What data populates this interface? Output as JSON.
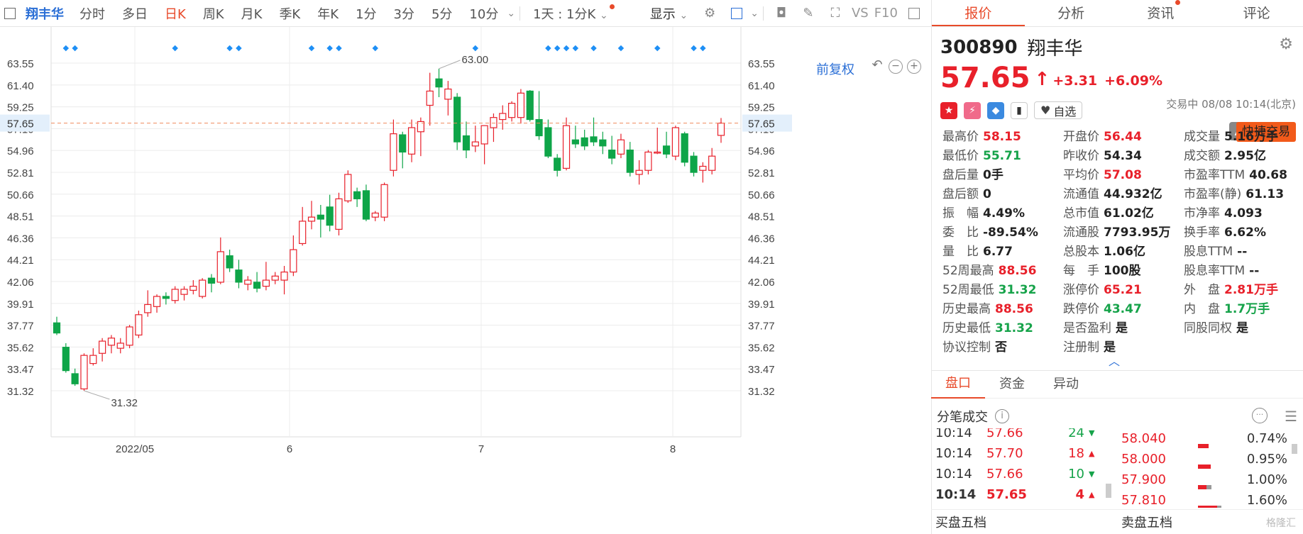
{
  "toolbar": {
    "stock_name": "翔丰华",
    "periods": [
      "分时",
      "多日",
      "日K",
      "周K",
      "月K",
      "季K",
      "年K",
      "1分",
      "3分",
      "5分",
      "10分"
    ],
    "active_period": "日K",
    "interval_select": "1天 : 1分K",
    "display_label": "显示",
    "vs_label": "VS",
    "f10_label": "F10"
  },
  "chart": {
    "fuquan_label": "前复权",
    "current_price_label": "57.65",
    "high_label": "63.00",
    "low_label": "31.32",
    "colors": {
      "up": "#e8202a",
      "down": "#0ea548",
      "grid": "#ececec",
      "marker": "#1e8ff5",
      "current_line": "#f08a5d"
    }
  },
  "chart_data": {
    "type": "candlestick",
    "y_ticks": [
      "63.55",
      "61.40",
      "59.25",
      "57.10",
      "54.96",
      "52.81",
      "50.66",
      "48.51",
      "46.36",
      "44.21",
      "42.06",
      "39.91",
      "37.77",
      "35.62",
      "33.47",
      "31.32"
    ],
    "ylim": [
      31.32,
      63.55
    ],
    "x_labels": [
      "2022/05",
      "6",
      "7",
      "8"
    ],
    "current_price": 57.65,
    "annotations": [
      {
        "text": "63.00",
        "value": 63.0
      },
      {
        "text": "31.32",
        "value": 31.32
      }
    ],
    "candles": [
      {
        "o": 38.0,
        "h": 38.6,
        "l": 36.8,
        "c": 37.0
      },
      {
        "o": 35.6,
        "h": 36.0,
        "l": 33.1,
        "c": 33.3
      },
      {
        "o": 33.0,
        "h": 33.5,
        "l": 31.8,
        "c": 32.0
      },
      {
        "o": 31.5,
        "h": 35.0,
        "l": 31.32,
        "c": 34.8
      },
      {
        "o": 34.0,
        "h": 35.5,
        "l": 33.8,
        "c": 34.8
      },
      {
        "o": 35.0,
        "h": 36.5,
        "l": 34.2,
        "c": 36.2
      },
      {
        "o": 35.8,
        "h": 36.8,
        "l": 35.0,
        "c": 36.5
      },
      {
        "o": 35.5,
        "h": 36.5,
        "l": 35.0,
        "c": 36.0
      },
      {
        "o": 35.8,
        "h": 37.8,
        "l": 35.5,
        "c": 37.6
      },
      {
        "o": 36.8,
        "h": 39.2,
        "l": 36.5,
        "c": 38.8
      },
      {
        "o": 39.0,
        "h": 41.2,
        "l": 38.6,
        "c": 39.8
      },
      {
        "o": 39.6,
        "h": 40.8,
        "l": 39.0,
        "c": 40.6
      },
      {
        "o": 40.6,
        "h": 41.0,
        "l": 39.8,
        "c": 40.4
      },
      {
        "o": 40.2,
        "h": 41.6,
        "l": 39.9,
        "c": 41.3
      },
      {
        "o": 40.8,
        "h": 41.6,
        "l": 40.2,
        "c": 41.3
      },
      {
        "o": 41.2,
        "h": 42.2,
        "l": 40.8,
        "c": 41.6
      },
      {
        "o": 40.6,
        "h": 42.4,
        "l": 40.4,
        "c": 42.2
      },
      {
        "o": 42.4,
        "h": 42.8,
        "l": 41.0,
        "c": 41.9
      },
      {
        "o": 42.0,
        "h": 46.4,
        "l": 41.8,
        "c": 45.0
      },
      {
        "o": 44.6,
        "h": 45.2,
        "l": 43.0,
        "c": 43.4
      },
      {
        "o": 43.2,
        "h": 44.2,
        "l": 41.4,
        "c": 42.0
      },
      {
        "o": 41.8,
        "h": 42.6,
        "l": 41.2,
        "c": 42.2
      },
      {
        "o": 42.0,
        "h": 43.0,
        "l": 41.0,
        "c": 41.4
      },
      {
        "o": 41.6,
        "h": 44.0,
        "l": 41.2,
        "c": 42.2
      },
      {
        "o": 42.2,
        "h": 43.0,
        "l": 41.8,
        "c": 42.6
      },
      {
        "o": 42.2,
        "h": 43.6,
        "l": 40.8,
        "c": 43.0
      },
      {
        "o": 43.0,
        "h": 46.6,
        "l": 42.6,
        "c": 45.2
      },
      {
        "o": 45.8,
        "h": 49.4,
        "l": 45.6,
        "c": 48.0
      },
      {
        "o": 48.0,
        "h": 50.0,
        "l": 47.2,
        "c": 48.4
      },
      {
        "o": 48.6,
        "h": 49.6,
        "l": 46.4,
        "c": 48.2
      },
      {
        "o": 49.4,
        "h": 50.6,
        "l": 47.0,
        "c": 47.6
      },
      {
        "o": 47.2,
        "h": 50.8,
        "l": 46.6,
        "c": 50.2
      },
      {
        "o": 50.0,
        "h": 53.0,
        "l": 49.8,
        "c": 52.6
      },
      {
        "o": 50.9,
        "h": 51.3,
        "l": 49.4,
        "c": 50.2
      },
      {
        "o": 51.0,
        "h": 51.6,
        "l": 48.0,
        "c": 48.2
      },
      {
        "o": 48.4,
        "h": 49.0,
        "l": 48.0,
        "c": 48.8
      },
      {
        "o": 48.4,
        "h": 51.8,
        "l": 48.0,
        "c": 51.6
      },
      {
        "o": 53.0,
        "h": 58.0,
        "l": 52.4,
        "c": 56.6
      },
      {
        "o": 56.5,
        "h": 56.8,
        "l": 53.2,
        "c": 54.8
      },
      {
        "o": 54.6,
        "h": 58.0,
        "l": 53.8,
        "c": 57.2
      },
      {
        "o": 56.8,
        "h": 58.2,
        "l": 54.4,
        "c": 57.8
      },
      {
        "o": 59.4,
        "h": 62.6,
        "l": 57.4,
        "c": 60.8
      },
      {
        "o": 62.0,
        "h": 63.0,
        "l": 60.2,
        "c": 61.2
      },
      {
        "o": 60.0,
        "h": 61.8,
        "l": 58.4,
        "c": 61.0
      },
      {
        "o": 60.2,
        "h": 60.6,
        "l": 55.0,
        "c": 55.8
      },
      {
        "o": 56.4,
        "h": 57.8,
        "l": 54.2,
        "c": 55.0
      },
      {
        "o": 55.4,
        "h": 57.4,
        "l": 54.8,
        "c": 55.8
      },
      {
        "o": 55.6,
        "h": 57.4,
        "l": 53.6,
        "c": 57.4
      },
      {
        "o": 57.2,
        "h": 58.6,
        "l": 55.8,
        "c": 58.2
      },
      {
        "o": 58.0,
        "h": 59.4,
        "l": 57.0,
        "c": 58.6
      },
      {
        "o": 58.2,
        "h": 59.8,
        "l": 57.8,
        "c": 59.6
      },
      {
        "o": 58.2,
        "h": 61.0,
        "l": 57.6,
        "c": 60.6
      },
      {
        "o": 60.8,
        "h": 60.9,
        "l": 57.8,
        "c": 58.0
      },
      {
        "o": 58.0,
        "h": 60.8,
        "l": 56.0,
        "c": 56.4
      },
      {
        "o": 57.2,
        "h": 58.0,
        "l": 54.2,
        "c": 54.4
      },
      {
        "o": 54.2,
        "h": 54.6,
        "l": 52.4,
        "c": 53.0
      },
      {
        "o": 53.2,
        "h": 58.2,
        "l": 53.0,
        "c": 57.4
      },
      {
        "o": 56.0,
        "h": 57.4,
        "l": 55.2,
        "c": 55.6
      },
      {
        "o": 56.2,
        "h": 57.0,
        "l": 55.0,
        "c": 55.4
      },
      {
        "o": 56.3,
        "h": 58.2,
        "l": 55.4,
        "c": 55.8
      },
      {
        "o": 56.0,
        "h": 56.8,
        "l": 54.6,
        "c": 55.4
      },
      {
        "o": 55.0,
        "h": 56.4,
        "l": 53.6,
        "c": 54.2
      },
      {
        "o": 54.6,
        "h": 56.6,
        "l": 54.2,
        "c": 56.0
      },
      {
        "o": 55.0,
        "h": 55.8,
        "l": 52.4,
        "c": 52.8
      },
      {
        "o": 52.6,
        "h": 54.0,
        "l": 51.6,
        "c": 53.0
      },
      {
        "o": 53.0,
        "h": 55.0,
        "l": 52.6,
        "c": 54.8
      },
      {
        "o": 54.8,
        "h": 57.2,
        "l": 54.6,
        "c": 54.8
      },
      {
        "o": 55.4,
        "h": 56.8,
        "l": 54.2,
        "c": 54.6
      },
      {
        "o": 54.4,
        "h": 57.4,
        "l": 54.0,
        "c": 57.2
      },
      {
        "o": 56.6,
        "h": 56.8,
        "l": 53.4,
        "c": 53.8
      },
      {
        "o": 54.4,
        "h": 54.8,
        "l": 52.4,
        "c": 52.8
      },
      {
        "o": 53.0,
        "h": 53.8,
        "l": 51.8,
        "c": 53.4
      },
      {
        "o": 53.0,
        "h": 55.2,
        "l": 52.6,
        "c": 54.4
      },
      {
        "o": 56.44,
        "h": 58.15,
        "l": 55.71,
        "c": 57.65
      }
    ],
    "event_marker_indices": [
      1,
      2,
      13,
      19,
      20,
      28,
      30,
      31,
      35,
      46,
      54,
      55,
      56,
      57,
      59,
      62,
      66,
      70,
      71
    ]
  },
  "right_tabs": [
    "报价",
    "分析",
    "资讯",
    "评论"
  ],
  "active_right_tab": "报价",
  "stock": {
    "code": "300890",
    "name": "翔丰华",
    "price": "57.65",
    "change": "+3.31",
    "change_pct": "+6.09%",
    "status": "交易中 08/08 10:14(北京)",
    "zixuan_label": "自选",
    "quick_trade_label": "快捷交易"
  },
  "quote": {
    "col1": [
      {
        "label": "最高价",
        "value": "58.15",
        "tone": "red"
      },
      {
        "label": "最低价",
        "value": "55.71",
        "tone": "green"
      },
      {
        "label": "盘后量",
        "value": "0手",
        "tone": ""
      },
      {
        "label": "盘后额",
        "value": "0",
        "tone": ""
      },
      {
        "label": "振　幅",
        "value": "4.49%",
        "tone": ""
      },
      {
        "label": "委　比",
        "value": "-89.54%",
        "tone": ""
      },
      {
        "label": "量　比",
        "value": "6.77",
        "tone": ""
      },
      {
        "label": "52周最高",
        "value": "88.56",
        "tone": "red"
      },
      {
        "label": "52周最低",
        "value": "31.32",
        "tone": "green"
      },
      {
        "label": "历史最高",
        "value": "88.56",
        "tone": "red"
      },
      {
        "label": "历史最低",
        "value": "31.32",
        "tone": "green"
      },
      {
        "label": "协议控制",
        "value": "否",
        "tone": ""
      }
    ],
    "col2": [
      {
        "label": "开盘价",
        "value": "56.44",
        "tone": "red"
      },
      {
        "label": "昨收价",
        "value": "54.34",
        "tone": ""
      },
      {
        "label": "平均价",
        "value": "57.08",
        "tone": "red"
      },
      {
        "label": "流通值",
        "value": "44.932亿",
        "tone": ""
      },
      {
        "label": "总市值",
        "value": "61.02亿",
        "tone": ""
      },
      {
        "label": "流通股",
        "value": "7793.95万",
        "tone": ""
      },
      {
        "label": "总股本",
        "value": "1.06亿",
        "tone": ""
      },
      {
        "label": "每　手",
        "value": "100股",
        "tone": ""
      },
      {
        "label": "涨停价",
        "value": "65.21",
        "tone": "red"
      },
      {
        "label": "跌停价",
        "value": "43.47",
        "tone": "green"
      },
      {
        "label": "是否盈利",
        "value": "是",
        "tone": ""
      },
      {
        "label": "注册制",
        "value": "是",
        "tone": ""
      }
    ],
    "col3": [
      {
        "label": "成交量",
        "value": "5.16万手",
        "tone": ""
      },
      {
        "label": "成交额",
        "value": "2.95亿",
        "tone": ""
      },
      {
        "label": "市盈率TTM",
        "value": "40.68",
        "tone": ""
      },
      {
        "label": "市盈率(静)",
        "value": "61.13",
        "tone": ""
      },
      {
        "label": "市净率",
        "value": "4.093",
        "tone": ""
      },
      {
        "label": "换手率",
        "value": "6.62%",
        "tone": ""
      },
      {
        "label": "股息TTM",
        "value": "--",
        "tone": ""
      },
      {
        "label": "股息率TTM",
        "value": "--",
        "tone": ""
      },
      {
        "label": "外　盘",
        "value": "2.81万手",
        "tone": "red"
      },
      {
        "label": "内　盘",
        "value": "1.7万手",
        "tone": "green"
      },
      {
        "label": "同股同权",
        "value": "是",
        "tone": ""
      }
    ]
  },
  "sub_tabs": [
    "盘口",
    "资金",
    "异动"
  ],
  "active_sub_tab": "盘口",
  "fenbi_title": "分笔成交",
  "ticks": [
    {
      "time": "10:14",
      "price": "57.66",
      "vol": "24",
      "dir": "down"
    },
    {
      "time": "10:14",
      "price": "57.70",
      "vol": "18",
      "dir": "up"
    },
    {
      "time": "10:14",
      "price": "57.66",
      "vol": "10",
      "dir": "down"
    },
    {
      "time": "10:14",
      "price": "57.65",
      "vol": "4",
      "dir": "up"
    }
  ],
  "levels": [
    {
      "price": "58.040",
      "pct": "0.74%",
      "red": 0.25,
      "gray": 0
    },
    {
      "price": "58.000",
      "pct": "0.95%",
      "red": 0.3,
      "gray": 0
    },
    {
      "price": "57.900",
      "pct": "1.00%",
      "red": 0.2,
      "gray": 0.12
    },
    {
      "price": "57.810",
      "pct": "1.60%",
      "red": 0.45,
      "gray": 0.1
    }
  ],
  "wudang": [
    "买盘五档",
    "卖盘五档"
  ],
  "watermark": "格隆汇"
}
